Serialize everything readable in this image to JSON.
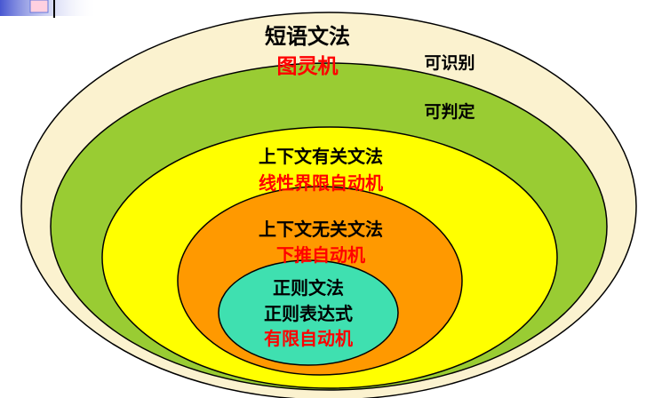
{
  "colors": {
    "outer_fill": "#FBF2CF",
    "green_fill": "#99CC33",
    "yellow_fill": "#FFFF00",
    "orange_fill": "#FF9900",
    "teal_fill": "#3FE0B0",
    "black_text": "#000000",
    "red_text": "#FF0000",
    "corner_bar": "#3344CC"
  },
  "phrase_grammar": {
    "title": "短语文法",
    "machine": "图灵机"
  },
  "recognizable_label": "可识别",
  "decidable_label": "可判定",
  "context_sensitive": {
    "title": "上下文有关文法",
    "machine": "线性界限自动机"
  },
  "context_free": {
    "title": "上下文无关文法",
    "machine": "下推自动机"
  },
  "regular": {
    "title": "正则文法",
    "expression": "正则表达式",
    "machine": "有限自动机"
  }
}
